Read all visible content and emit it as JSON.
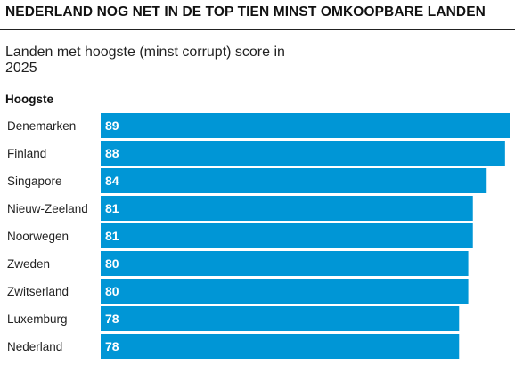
{
  "header": {
    "headline": "NEDERLAND NOG NET IN DE TOP TIEN MINST OMKOOPBARE LANDEN"
  },
  "chart_data": {
    "type": "bar",
    "orientation": "horizontal",
    "title": "Landen met hoogste (minst corrupt) score in 2025",
    "group_label": "Hoogste",
    "categories": [
      "Denemarken",
      "Finland",
      "Singapore",
      "Nieuw-Zeeland",
      "Noorwegen",
      "Zweden",
      "Zwitserland",
      "Luxemburg",
      "Nederland"
    ],
    "values": [
      89,
      88,
      84,
      81,
      81,
      80,
      80,
      78,
      78
    ],
    "bar_color": "#0096D6",
    "value_label_color": "#FFFFFF",
    "grid": false,
    "legend": "none",
    "xlim": [
      0,
      89
    ]
  }
}
